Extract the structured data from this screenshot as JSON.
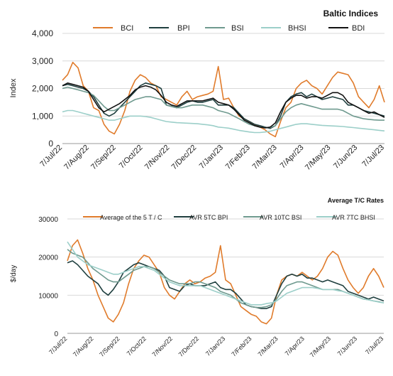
{
  "chart_data": [
    {
      "type": "line",
      "title": "Baltic Indices",
      "xlabel": "",
      "ylabel": "Index",
      "ylim": [
        0,
        4000
      ],
      "yticks": [
        "0",
        "1,000",
        "2,000",
        "3,000",
        "4,000"
      ],
      "ytick_values": [
        0,
        1000,
        2000,
        3000,
        4000
      ],
      "x_tick_labels": [
        "7/Jul/22",
        "7/Aug/22",
        "7/Sep/22",
        "7/Oct/22",
        "7/Nov/22",
        "7/Dec/22",
        "7/Jan/23",
        "7/Feb/23",
        "7/Mar/23",
        "7/Apr/23",
        "7/May/23",
        "7/Jun/23",
        "7/Jul/23"
      ],
      "grid": "horizontal",
      "legend_position": "top",
      "series": [
        {
          "name": "BCI",
          "color": "#e07b2b",
          "values": [
            2300,
            2500,
            2950,
            2750,
            2100,
            1900,
            1300,
            1200,
            700,
            450,
            350,
            700,
            1200,
            1900,
            2300,
            2500,
            2400,
            2200,
            2100,
            1700,
            1600,
            1500,
            1400,
            1700,
            1900,
            1600,
            1700,
            1750,
            1800,
            1900,
            2800,
            1600,
            1650,
            1300,
            1000,
            900,
            800,
            700,
            600,
            500,
            350,
            250,
            800,
            1300,
            1500,
            2000,
            2200,
            2300,
            2100,
            2000,
            1800,
            2100,
            2400,
            2600,
            2550,
            2500,
            2200,
            1700,
            1500,
            1300,
            1600,
            2100,
            1500
          ]
        },
        {
          "name": "BPI",
          "color": "#1f3f3f",
          "values": [
            2100,
            2150,
            2100,
            2050,
            2000,
            1900,
            1700,
            1400,
            1100,
            1000,
            1100,
            1300,
            1500,
            1700,
            1900,
            2100,
            2200,
            2150,
            2100,
            2000,
            1400,
            1350,
            1300,
            1400,
            1500,
            1550,
            1500,
            1500,
            1550,
            1600,
            1400,
            1400,
            1400,
            1300,
            1100,
            900,
            800,
            700,
            650,
            600,
            550,
            650,
            1000,
            1500,
            1700,
            1800,
            1850,
            1700,
            1800,
            1700,
            1600,
            1650,
            1700,
            1650,
            1600,
            1400,
            1400,
            1300,
            1200,
            1150,
            1100,
            1050,
            1000
          ]
        },
        {
          "name": "BSI",
          "color": "#6f9a8f",
          "values": [
            2000,
            2050,
            2000,
            1950,
            1900,
            1850,
            1750,
            1550,
            1350,
            1200,
            1200,
            1300,
            1400,
            1500,
            1600,
            1650,
            1700,
            1700,
            1650,
            1600,
            1400,
            1350,
            1300,
            1300,
            1350,
            1400,
            1400,
            1400,
            1350,
            1300,
            1200,
            1150,
            1100,
            1000,
            900,
            800,
            700,
            650,
            600,
            580,
            580,
            650,
            900,
            1150,
            1300,
            1400,
            1450,
            1400,
            1350,
            1300,
            1250,
            1250,
            1250,
            1250,
            1200,
            1100,
            1000,
            950,
            900,
            880,
            860,
            850,
            850
          ]
        },
        {
          "name": "BHSI",
          "color": "#9ccfc9",
          "values": [
            1150,
            1200,
            1200,
            1150,
            1100,
            1050,
            1000,
            950,
            900,
            850,
            850,
            900,
            950,
            1000,
            1000,
            1000,
            980,
            950,
            900,
            850,
            800,
            780,
            760,
            750,
            740,
            730,
            720,
            700,
            680,
            650,
            600,
            580,
            560,
            520,
            480,
            450,
            420,
            400,
            400,
            420,
            450,
            500,
            550,
            600,
            650,
            700,
            720,
            720,
            700,
            680,
            660,
            650,
            640,
            630,
            620,
            600,
            580,
            560,
            540,
            520,
            500,
            480,
            460
          ]
        },
        {
          "name": "BDI",
          "color": "#111111",
          "values": [
            2100,
            2200,
            2150,
            2100,
            2050,
            1900,
            1600,
            1300,
            1150,
            1250,
            1350,
            1450,
            1600,
            1750,
            1950,
            2050,
            2100,
            2050,
            1950,
            1750,
            1500,
            1400,
            1350,
            1450,
            1550,
            1550,
            1550,
            1550,
            1600,
            1650,
            1500,
            1450,
            1400,
            1250,
            1050,
            850,
            750,
            650,
            600,
            570,
            600,
            750,
            1150,
            1500,
            1650,
            1750,
            1750,
            1650,
            1700,
            1700,
            1650,
            1750,
            1850,
            1850,
            1750,
            1500,
            1400,
            1300,
            1200,
            1100,
            1150,
            1050,
            950
          ]
        }
      ]
    },
    {
      "type": "line",
      "title": "Average T/C Rates",
      "xlabel": "",
      "ylabel": "$/day",
      "ylim": [
        0,
        30000
      ],
      "yticks": [
        "0",
        "10000",
        "20000",
        "30000"
      ],
      "ytick_values": [
        0,
        10000,
        20000,
        30000
      ],
      "x_tick_labels": [
        "7/Jul/22",
        "7/Aug/22",
        "7/Sep/22",
        "7/Oct/22",
        "7/Nov/22",
        "7/Dec/22",
        "7/Jan/23",
        "7/Feb/23",
        "7/Mar/23",
        "7/Apr/23",
        "7/May/23",
        "7/Jun/23",
        "7/Jul/23"
      ],
      "grid": "horizontal",
      "legend_position": "top",
      "series": [
        {
          "name": "Average of the 5 T / C",
          "color": "#e07b2b",
          "values": [
            19000,
            23000,
            24500,
            21000,
            17000,
            14000,
            10000,
            7000,
            4000,
            3000,
            5000,
            8000,
            13000,
            17000,
            19000,
            20500,
            20000,
            18000,
            16000,
            12000,
            10000,
            9000,
            11000,
            13000,
            14000,
            13000,
            13500,
            14500,
            15000,
            16000,
            23000,
            14000,
            13000,
            10000,
            7000,
            6000,
            5000,
            4500,
            3000,
            2500,
            4000,
            10000,
            14000,
            15000,
            15500,
            15000,
            16000,
            15000,
            14000,
            15000,
            17000,
            20000,
            21500,
            20500,
            17000,
            14000,
            12000,
            10500,
            12000,
            15000,
            17000,
            15000,
            12000
          ]
        },
        {
          "name": "AVR 5TC BPI",
          "color": "#1f3f3f",
          "values": [
            18500,
            19000,
            18000,
            16500,
            15000,
            14000,
            13000,
            11000,
            10000,
            11500,
            13500,
            16000,
            17000,
            18000,
            18500,
            18000,
            17500,
            17000,
            16500,
            15000,
            12000,
            11500,
            11000,
            12500,
            13000,
            12500,
            12500,
            12500,
            13000,
            13500,
            12000,
            11500,
            11500,
            10500,
            9000,
            7500,
            7000,
            6800,
            6500,
            6500,
            7000,
            10000,
            13000,
            15000,
            15500,
            15000,
            15500,
            14500,
            14500,
            14000,
            13500,
            14000,
            13500,
            13000,
            12500,
            11000,
            10500,
            10000,
            9500,
            9000,
            9500,
            9000,
            8500
          ]
        },
        {
          "name": "AVR 10TC BSI",
          "color": "#6f9a8f",
          "values": [
            22000,
            21000,
            20500,
            20000,
            18500,
            17000,
            16000,
            15000,
            14000,
            13500,
            13500,
            14500,
            15500,
            16500,
            17000,
            17500,
            17500,
            17000,
            16000,
            15000,
            14000,
            13500,
            13000,
            13000,
            13000,
            13500,
            13500,
            13000,
            12500,
            12000,
            11000,
            10500,
            10000,
            9000,
            8000,
            7500,
            7000,
            6800,
            6800,
            7000,
            7500,
            9000,
            11000,
            12500,
            13000,
            13500,
            13500,
            13000,
            12500,
            12000,
            11500,
            11500,
            11500,
            11500,
            11000,
            10500,
            10000,
            9500,
            9000,
            8800,
            8500,
            8300,
            8000
          ]
        },
        {
          "name": "AVR 7TC BHSI",
          "color": "#9ccfc9",
          "values": [
            24000,
            22000,
            20000,
            19000,
            18000,
            17500,
            17000,
            16500,
            16000,
            15500,
            15500,
            16000,
            16500,
            17000,
            17500,
            17500,
            17000,
            16500,
            15500,
            14500,
            13500,
            13000,
            12500,
            12500,
            12500,
            12500,
            12500,
            12000,
            11500,
            11000,
            10500,
            10000,
            9500,
            9000,
            8500,
            8000,
            7500,
            7500,
            7500,
            7800,
            8000,
            8500,
            9500,
            10500,
            11000,
            11500,
            12000,
            12000,
            12000,
            11800,
            11500,
            11500,
            11500,
            11200,
            11000,
            10500,
            10000,
            9500,
            9000,
            8800,
            8500,
            8200,
            8000
          ]
        }
      ]
    }
  ]
}
